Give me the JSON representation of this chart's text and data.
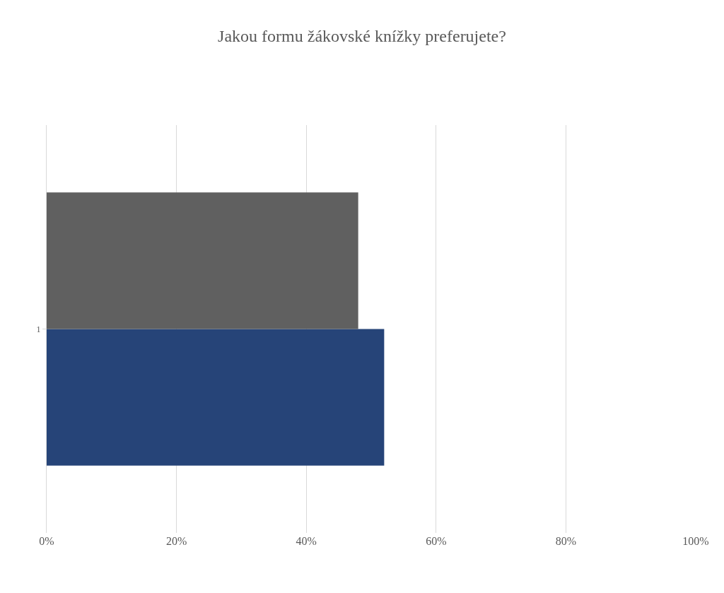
{
  "chart_data": {
    "type": "bar",
    "orientation": "horizontal",
    "title": "Jakou formu žákovské knížky preferujete?",
    "categories": [
      "1"
    ],
    "series": [
      {
        "color": "#264478",
        "values": [
          52
        ]
      },
      {
        "color": "#606060",
        "values": [
          48
        ]
      }
    ],
    "xlim": [
      0,
      100
    ],
    "xticks": [
      {
        "value": 0,
        "label": "0%"
      },
      {
        "value": 20,
        "label": "20%"
      },
      {
        "value": 40,
        "label": "40%"
      },
      {
        "value": 60,
        "label": "60%"
      },
      {
        "value": 80,
        "label": "80%"
      },
      {
        "value": 100,
        "label": "100%"
      }
    ],
    "grid": "x"
  }
}
